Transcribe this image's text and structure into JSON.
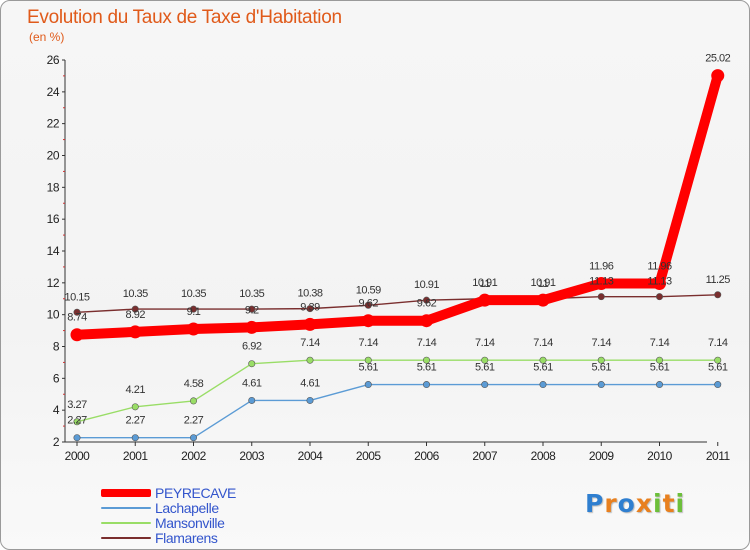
{
  "header": {
    "title": "Evolution du Taux de Taxe d'Habitation",
    "unit": "(en %)"
  },
  "logo": {
    "text": "Proxiti"
  },
  "chart_data": {
    "type": "line",
    "title": "Evolution du Taux de Taxe d'Habitation",
    "ylabel": "(en %)",
    "xlabel": "",
    "ylim": [
      2,
      26
    ],
    "yticks": [
      2,
      4,
      6,
      8,
      10,
      12,
      14,
      16,
      18,
      20,
      22,
      24,
      26
    ],
    "grid": false,
    "legend_position": "bottom-left",
    "x": [
      "2000",
      "2001",
      "2002",
      "2003",
      "2004",
      "2005",
      "2006",
      "2007",
      "2008",
      "2009",
      "2010",
      "2011"
    ],
    "series": [
      {
        "name": "PEYRECAVE",
        "color": "#ff0000",
        "values": [
          8.74,
          8.92,
          9.1,
          9.2,
          9.39,
          9.62,
          9.62,
          10.91,
          10.91,
          11.96,
          11.96,
          25.02
        ],
        "labels": [
          "8.74",
          "8.92",
          "9.1",
          "9.2",
          "9.39",
          "9.62",
          "9.62",
          "10.91",
          "10.91",
          "11.96",
          "11.96",
          "25.02"
        ]
      },
      {
        "name": "Lachapelle",
        "color": "#5b9bd5",
        "values": [
          2.27,
          2.27,
          2.27,
          4.61,
          4.61,
          5.61,
          5.61,
          5.61,
          5.61,
          5.61,
          5.61,
          5.61
        ],
        "labels": [
          "2.27",
          "2.27",
          "2.27",
          "4.61",
          "4.61",
          "5.61",
          "5.61",
          "5.61",
          "5.61",
          "5.61",
          "5.61",
          "5.61"
        ]
      },
      {
        "name": "Mansonville",
        "color": "#99dd66",
        "values": [
          3.27,
          4.21,
          4.58,
          6.92,
          7.14,
          7.14,
          7.14,
          7.14,
          7.14,
          7.14,
          7.14,
          7.14
        ],
        "labels": [
          "3.27",
          "4.21",
          "4.58",
          "6.92",
          "7.14",
          "7.14",
          "7.14",
          "7.14",
          "7.14",
          "7.14",
          "7.14",
          "7.14"
        ]
      },
      {
        "name": "Flamarens",
        "color": "#7a2e2e",
        "values": [
          10.15,
          10.35,
          10.35,
          10.35,
          10.38,
          10.59,
          10.91,
          11,
          11,
          11.13,
          11.13,
          11.25
        ],
        "labels": [
          "10.15",
          "10.35",
          "10.35",
          "10.35",
          "10.38",
          "10.59",
          "10.91",
          "11",
          "11",
          "11.13",
          "11.13",
          "11.25"
        ]
      }
    ]
  }
}
